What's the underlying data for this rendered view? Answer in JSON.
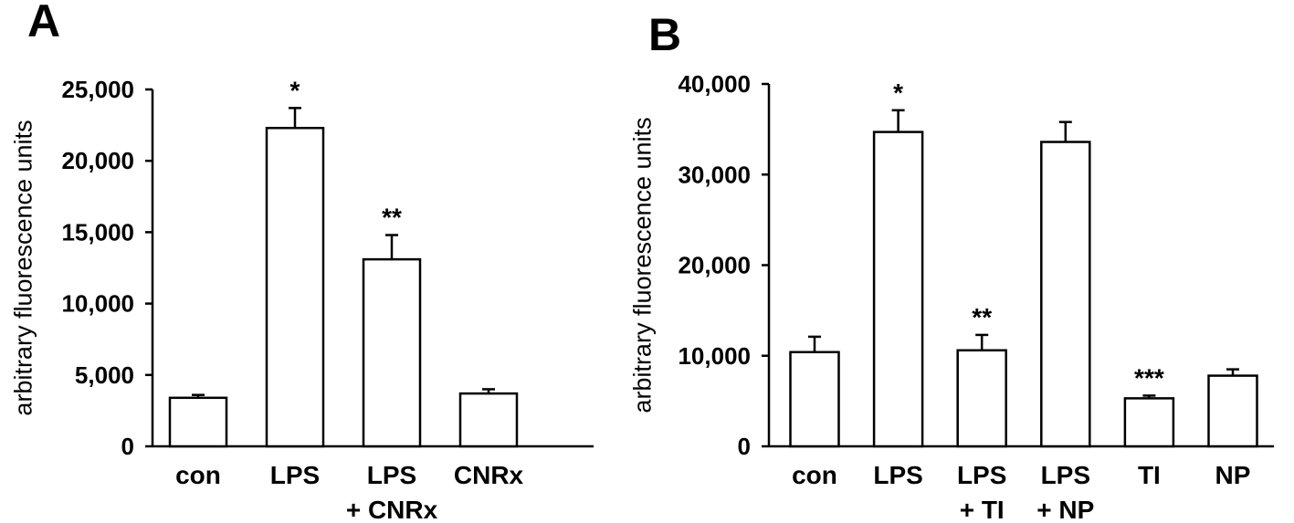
{
  "chart_data": [
    {
      "type": "bar",
      "panel_label": "A",
      "ylabel": "arbitrary fluorescence units",
      "ylim": [
        0,
        25000
      ],
      "yticks": [
        "0",
        "5,000",
        "10,000",
        "15,000",
        "20,000",
        "25,000"
      ],
      "categories": [
        [
          "con"
        ],
        [
          "LPS"
        ],
        [
          "LPS",
          "+ CNRx"
        ],
        [
          "CNRx"
        ]
      ],
      "values": [
        3400,
        22300,
        13100,
        3700
      ],
      "errors": [
        200,
        1400,
        1700,
        300
      ],
      "annotations": [
        "",
        "*",
        "**",
        ""
      ],
      "bar_color": "#ffffff",
      "edge_color": "#000000"
    },
    {
      "type": "bar",
      "panel_label": "B",
      "ylabel": "arbitrary fluorescence units",
      "ylim": [
        0,
        40000
      ],
      "yticks": [
        "0",
        "10,000",
        "20,000",
        "30,000",
        "40,000"
      ],
      "categories": [
        [
          "con"
        ],
        [
          "LPS"
        ],
        [
          "LPS",
          "+ TI"
        ],
        [
          "LPS",
          "+ NP"
        ],
        [
          "TI"
        ],
        [
          "NP"
        ]
      ],
      "values": [
        10400,
        34700,
        10600,
        33600,
        5300,
        7800
      ],
      "errors": [
        1700,
        2400,
        1700,
        2200,
        300,
        700
      ],
      "annotations": [
        "",
        "*",
        "**",
        "",
        "***",
        ""
      ],
      "bar_color": "#ffffff",
      "edge_color": "#000000"
    }
  ]
}
